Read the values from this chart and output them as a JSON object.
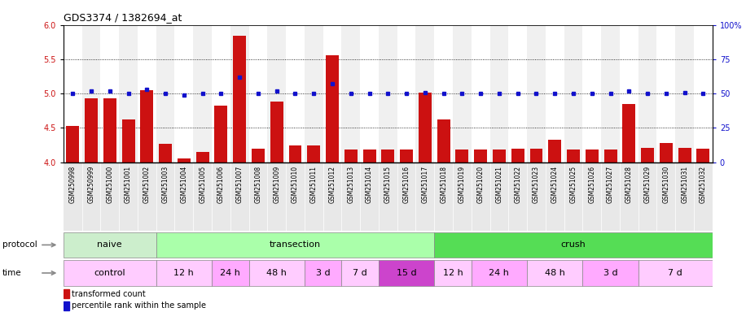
{
  "title": "GDS3374 / 1382694_at",
  "samples": [
    "GSM250998",
    "GSM250999",
    "GSM251000",
    "GSM251001",
    "GSM251002",
    "GSM251003",
    "GSM251004",
    "GSM251005",
    "GSM251006",
    "GSM251007",
    "GSM251008",
    "GSM251009",
    "GSM251010",
    "GSM251011",
    "GSM251012",
    "GSM251013",
    "GSM251014",
    "GSM251015",
    "GSM251016",
    "GSM251017",
    "GSM251018",
    "GSM251019",
    "GSM251020",
    "GSM251021",
    "GSM251022",
    "GSM251023",
    "GSM251024",
    "GSM251025",
    "GSM251026",
    "GSM251027",
    "GSM251028",
    "GSM251029",
    "GSM251030",
    "GSM251031",
    "GSM251032"
  ],
  "bar_values": [
    4.53,
    4.93,
    4.93,
    4.62,
    5.05,
    4.27,
    4.05,
    4.15,
    4.82,
    5.84,
    4.2,
    4.88,
    4.24,
    4.25,
    5.56,
    4.18,
    4.18,
    4.18,
    4.18,
    5.02,
    4.62,
    4.18,
    4.18,
    4.18,
    4.2,
    4.2,
    4.33,
    4.18,
    4.18,
    4.18,
    4.85,
    4.21,
    4.28,
    4.21,
    4.2
  ],
  "blue_values": [
    50,
    52,
    52,
    50,
    53,
    50,
    49,
    50,
    50,
    62,
    50,
    52,
    50,
    50,
    57,
    50,
    50,
    50,
    50,
    51,
    50,
    50,
    50,
    50,
    50,
    50,
    50,
    50,
    50,
    50,
    52,
    50,
    50,
    51,
    50
  ],
  "ylim_left": [
    4.0,
    6.0
  ],
  "ylim_right": [
    0,
    100
  ],
  "yticks_left": [
    4.0,
    4.5,
    5.0,
    5.5,
    6.0
  ],
  "yticks_right": [
    0,
    25,
    50,
    75,
    100
  ],
  "ytick_labels_right": [
    "0",
    "25",
    "50",
    "75",
    "100%"
  ],
  "bar_color": "#cc1111",
  "blue_color": "#1111cc",
  "protocol_groups": [
    {
      "label": "naive",
      "start": 0,
      "end": 4,
      "color": "#cceecc"
    },
    {
      "label": "transection",
      "start": 5,
      "end": 19,
      "color": "#aaffaa"
    },
    {
      "label": "crush",
      "start": 20,
      "end": 34,
      "color": "#55dd55"
    }
  ],
  "time_groups": [
    {
      "label": "control",
      "start": 0,
      "end": 4,
      "color": "#ffccff"
    },
    {
      "label": "12 h",
      "start": 5,
      "end": 7,
      "color": "#ffccff"
    },
    {
      "label": "24 h",
      "start": 8,
      "end": 9,
      "color": "#ffaaff"
    },
    {
      "label": "48 h",
      "start": 10,
      "end": 12,
      "color": "#ffccff"
    },
    {
      "label": "3 d",
      "start": 13,
      "end": 14,
      "color": "#ffaaff"
    },
    {
      "label": "7 d",
      "start": 15,
      "end": 16,
      "color": "#ffccff"
    },
    {
      "label": "15 d",
      "start": 17,
      "end": 19,
      "color": "#cc44cc"
    },
    {
      "label": "12 h",
      "start": 20,
      "end": 21,
      "color": "#ffccff"
    },
    {
      "label": "24 h",
      "start": 22,
      "end": 24,
      "color": "#ffaaff"
    },
    {
      "label": "48 h",
      "start": 25,
      "end": 27,
      "color": "#ffccff"
    },
    {
      "label": "3 d",
      "start": 28,
      "end": 30,
      "color": "#ffaaff"
    },
    {
      "label": "7 d",
      "start": 31,
      "end": 34,
      "color": "#ffccff"
    }
  ]
}
